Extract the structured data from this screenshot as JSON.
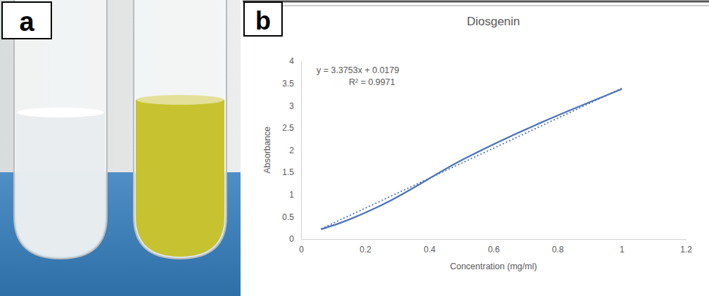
{
  "panels": [
    {
      "label": "a"
    },
    {
      "label": "b"
    }
  ],
  "chart_data": {
    "type": "line",
    "title": "Diosgenin",
    "x_label": "Concentration (mg/ml)",
    "y_label": "Absorbance",
    "annotations": [
      "y = 3.3753x + 0.0179",
      "R² = 0.9971"
    ],
    "series": [
      {
        "x": [
          0.0625,
          0.125,
          0.25,
          0.5,
          1
        ],
        "values": [
          0.22,
          0.37,
          0.76,
          1.77,
          3.37
        ],
        "color": "#4a72b8",
        "line_style": "solid"
      },
      {
        "x": [
          0.0625,
          1
        ],
        "values": [
          0.23,
          3.39
        ],
        "color": "#4a72b8",
        "line_style": "dotted"
      }
    ],
    "xlim": [
      0,
      1.2
    ],
    "xticks": [
      0,
      0.2,
      0.4,
      0.6,
      0.8,
      1,
      1.2
    ],
    "ylim": [
      0,
      4
    ],
    "yticks": [
      0,
      0.5,
      1,
      1.5,
      2,
      2.5,
      3,
      3.5,
      4
    ],
    "grid": false
  }
}
